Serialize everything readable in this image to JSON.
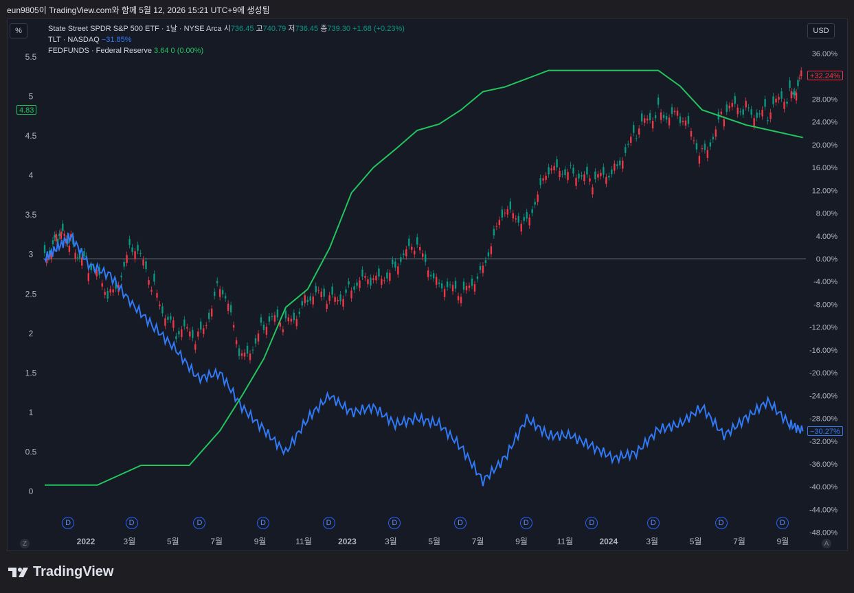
{
  "header": {
    "text": "eun9805이 TradingView.com와 함께 5월 12, 2026 15:21 UTC+9에 생성됨"
  },
  "toolbar": {
    "left_button": "%",
    "right_button": "USD"
  },
  "legend": {
    "spy": {
      "name": "State Street SPDR S&P 500 ETF · 1날 · NYSE Arca",
      "o_label": "시",
      "o": "736.45",
      "h_label": "고",
      "h": "740.79",
      "l_label": "저",
      "l": "736.45",
      "c_label": "종",
      "c": "739.30",
      "chg": "+1.68 (+0.23%)"
    },
    "tlt": {
      "name": "TLT · NASDAQ",
      "chg": "−31.85%"
    },
    "fed": {
      "name": "FEDFUNDS · Federal Reserve",
      "value": "3.64",
      "chg": "0 (0.00%)"
    }
  },
  "badges": {
    "left_value": "4.83",
    "spy_pct": "+32.24%",
    "tlt_pct": "−30.27%"
  },
  "dividend_marker": "D",
  "corner_letters": {
    "left": "Z",
    "right": "A"
  },
  "footer": {
    "brand": "TradingView"
  },
  "chart_data": {
    "type": "line",
    "x_ticks": [
      "2022",
      "3월",
      "5월",
      "7월",
      "9월",
      "11월",
      "2023",
      "3월",
      "5월",
      "7월",
      "9월",
      "11월",
      "2024",
      "3월",
      "5월",
      "7월",
      "9월"
    ],
    "left_axis": {
      "label": "%",
      "ticks": [
        "5.5",
        "5",
        "4.5",
        "4",
        "3.5",
        "3",
        "2.5",
        "2",
        "1.5",
        "1",
        "0.5",
        "0"
      ],
      "range": [
        0,
        5.5
      ]
    },
    "right_axis": {
      "ticks": [
        "36.00%",
        "32.00%",
        "28.00%",
        "24.00%",
        "20.00%",
        "16.00%",
        "12.00%",
        "8.00%",
        "4.00%",
        "0.00%",
        "-4.00%",
        "-8.00%",
        "-12.00%",
        "-16.00%",
        "-20.00%",
        "-24.00%",
        "-28.00%",
        "-32.00%",
        "-36.00%",
        "-40.00%",
        "-44.00%",
        "-48.00%"
      ],
      "range": [
        -48,
        36
      ]
    },
    "colors": {
      "spy_up": "#089981",
      "spy_down": "#f23645",
      "tlt": "#3179f5",
      "fed": "#22c55e",
      "zero": "#787b86"
    },
    "series": [
      {
        "name": "FEDFUNDS · Federal Reserve",
        "axis": "left",
        "x": [
          0,
          1.2,
          2.2,
          3.3,
          4.0,
          4.5,
          5.0,
          5.5,
          6.0,
          6.5,
          7.0,
          7.5,
          8.0,
          8.5,
          9.0,
          9.5,
          10.0,
          10.5,
          11.5,
          12.3,
          13.0,
          13.5,
          14.0,
          14.5,
          15.0,
          16.0,
          17.3
        ],
        "values": [
          0.08,
          0.08,
          0.33,
          0.33,
          0.77,
          1.21,
          1.68,
          2.33,
          2.56,
          3.08,
          3.78,
          4.1,
          4.33,
          4.57,
          4.65,
          4.83,
          5.06,
          5.12,
          5.33,
          5.33,
          5.33,
          5.33,
          5.33,
          5.13,
          4.83,
          4.64,
          4.48
        ]
      },
      {
        "name": "TLT · NASDAQ",
        "axis": "right",
        "x": [
          0,
          0.3,
          0.6,
          1.0,
          1.5,
          2.0,
          2.5,
          3.0,
          3.5,
          4.0,
          4.5,
          5.0,
          5.5,
          6.0,
          6.5,
          7.0,
          7.5,
          8.0,
          8.5,
          9.0,
          9.5,
          10.0,
          10.5,
          11.0,
          11.5,
          12.0,
          12.5,
          13.0,
          13.5,
          14.0,
          14.5,
          15.0,
          15.5,
          16.0,
          16.5,
          17.0,
          17.3
        ],
        "values": [
          0,
          2,
          4,
          -1,
          -3,
          -8,
          -12,
          -16,
          -21,
          -20,
          -26,
          -30,
          -34,
          -28,
          -24,
          -27,
          -26,
          -29,
          -28,
          -29,
          -33,
          -39,
          -35,
          -28,
          -31,
          -31,
          -33,
          -35,
          -34,
          -30,
          -29,
          -26,
          -31,
          -28,
          -25,
          -29,
          -30.27
        ]
      },
      {
        "name": "State Street SPDR S&P 500 ETF",
        "axis": "right",
        "x": [
          0,
          0.3,
          0.6,
          1.0,
          1.5,
          2.0,
          2.5,
          3.0,
          3.5,
          4.0,
          4.5,
          5.0,
          5.5,
          6.0,
          6.5,
          7.0,
          7.5,
          8.0,
          8.5,
          9.0,
          9.5,
          10.0,
          10.5,
          11.0,
          11.5,
          12.0,
          12.5,
          13.0,
          13.5,
          14.0,
          14.5,
          15.0,
          15.5,
          16.0,
          16.5,
          17.0,
          17.3
        ],
        "values": [
          1,
          3,
          4,
          -2,
          -6,
          2,
          -5,
          -13,
          -14,
          -4,
          -18,
          -11,
          -12,
          -6,
          -8,
          -4,
          -5,
          0,
          1,
          -3,
          -8,
          0,
          7,
          8,
          14,
          17,
          12,
          17,
          21,
          27,
          24,
          19,
          25,
          27,
          25,
          29,
          32.24
        ]
      }
    ]
  }
}
